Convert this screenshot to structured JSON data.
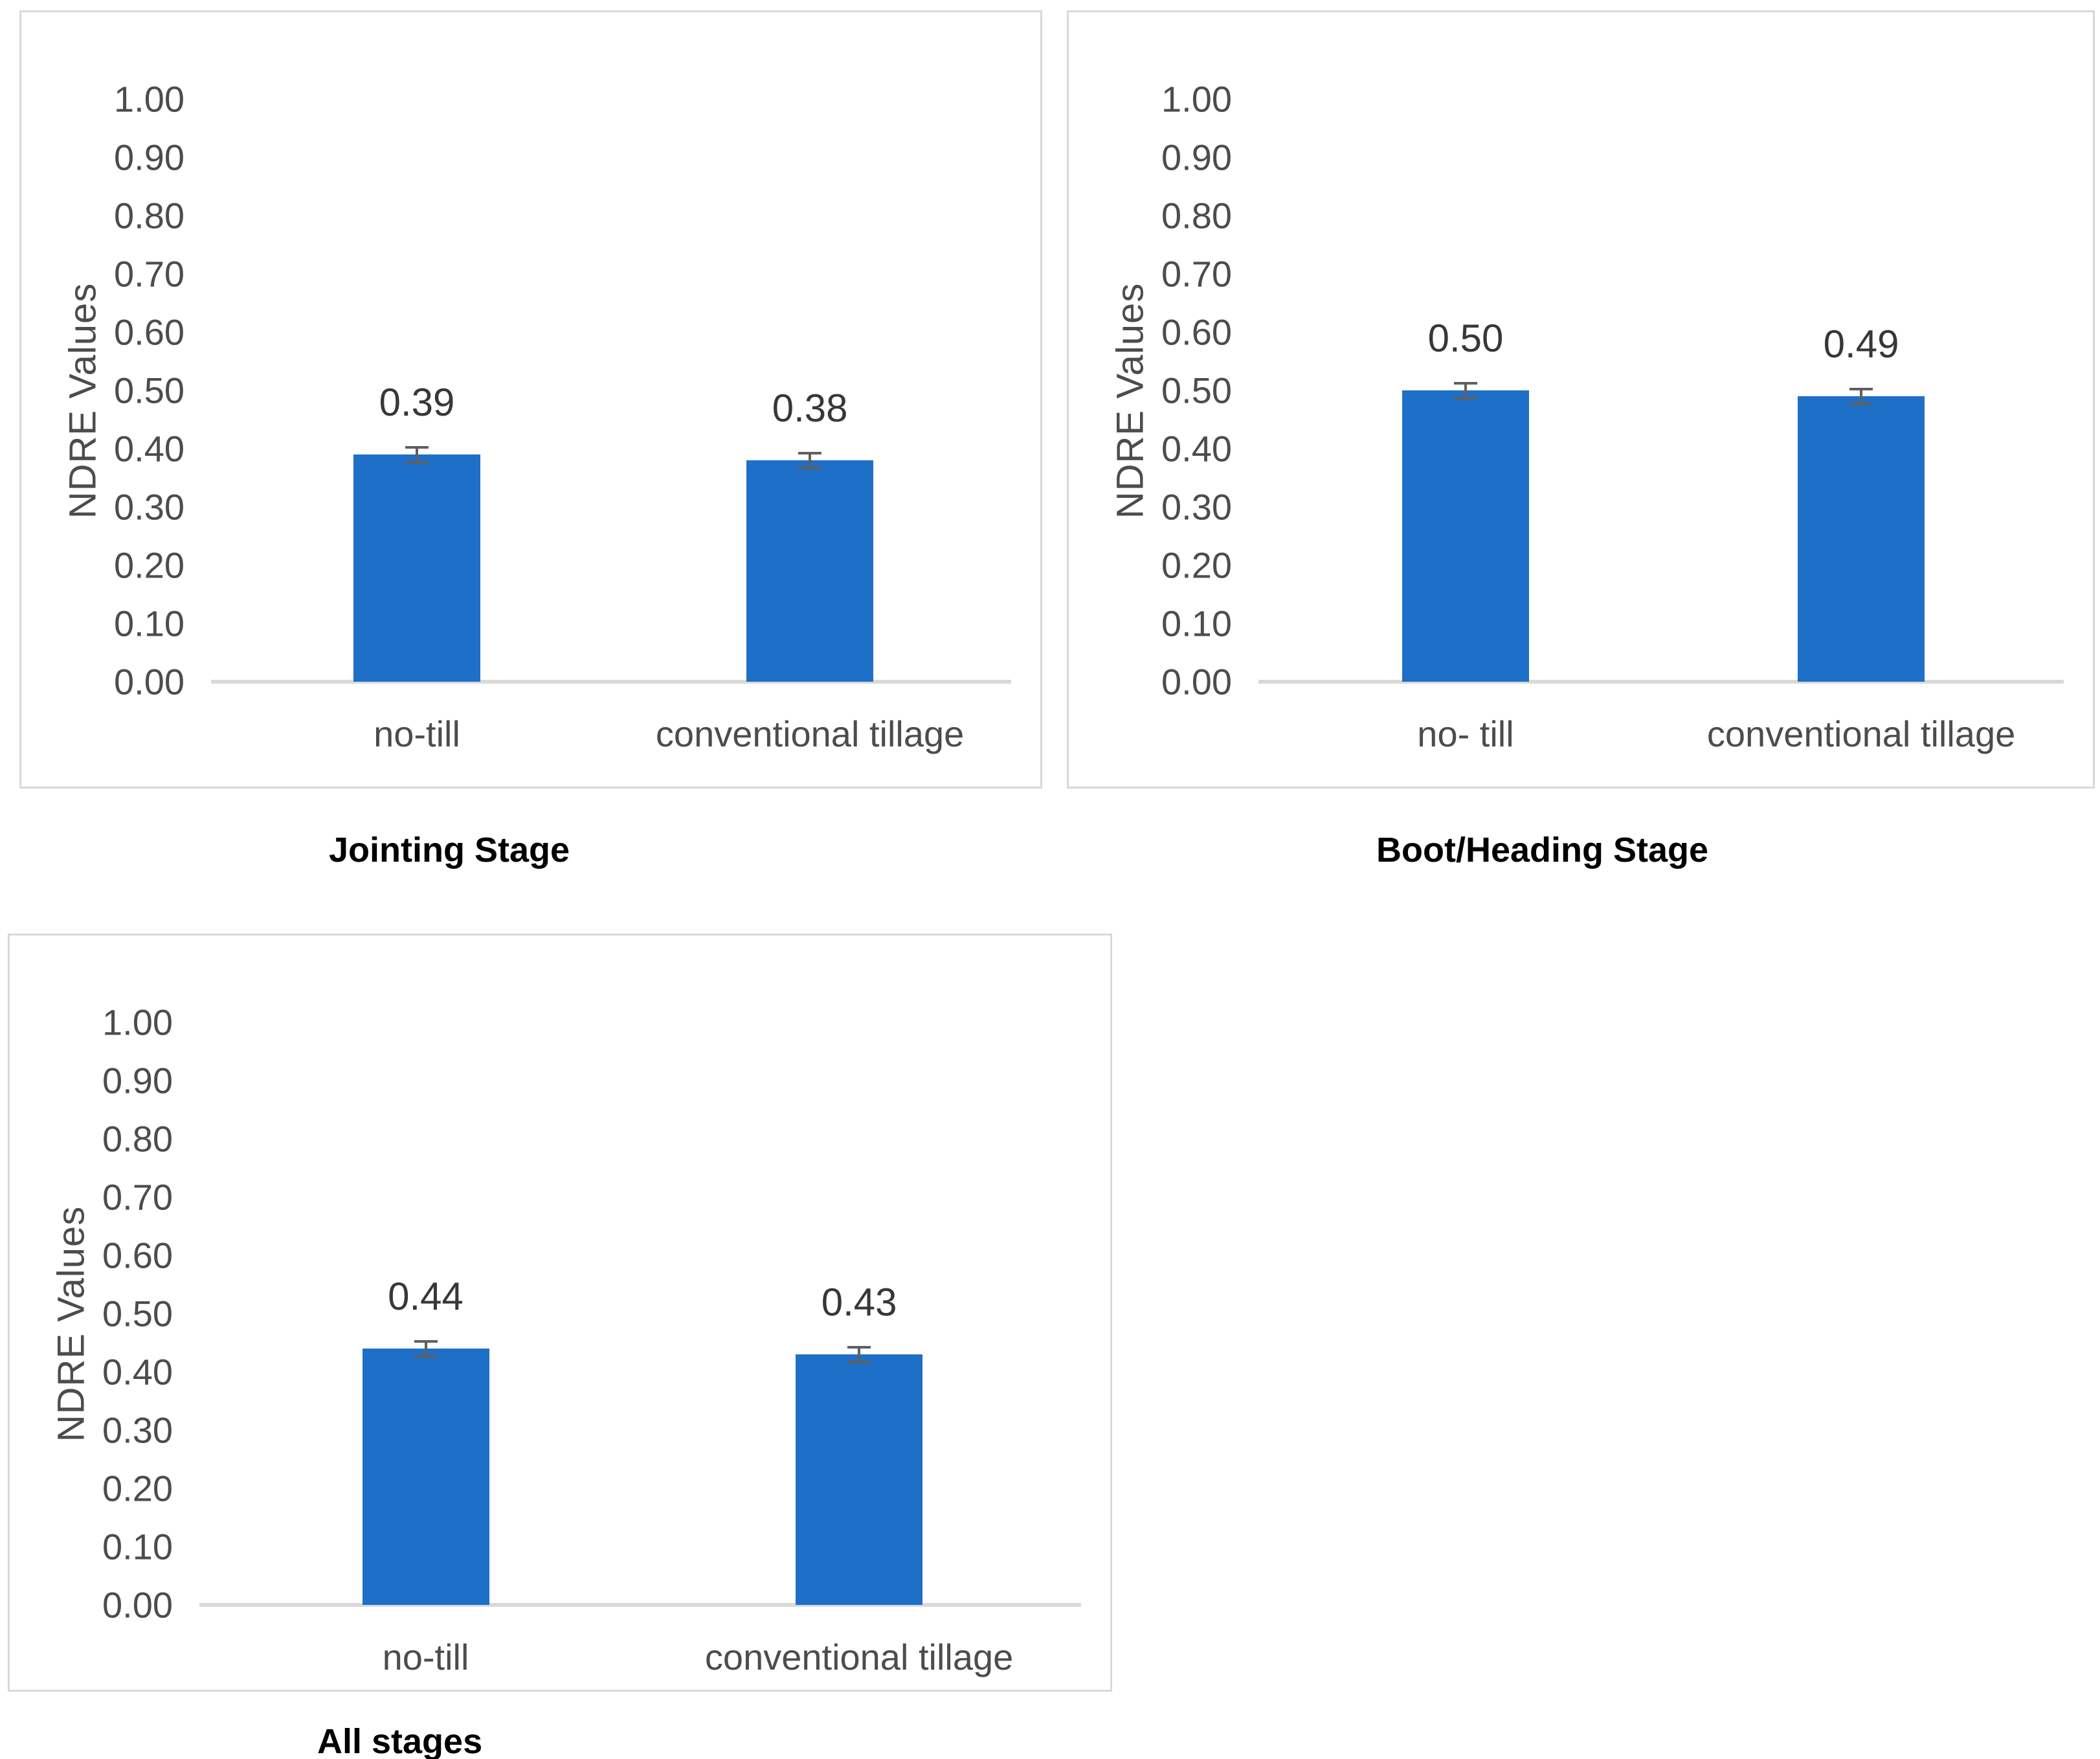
{
  "figure": {
    "background": "#ffffff"
  },
  "colors": {
    "bar": "#1e6fc8",
    "axis_line": "#d9d9d9",
    "panel_border": "#d9d9d9",
    "tick_text": "#4c4c4c",
    "category_text": "#4c4c4c",
    "value_text": "#373737",
    "caption_text": "#000000",
    "error_bar": "#5f5f5f"
  },
  "chart_data": [
    {
      "type": "bar",
      "title": "Jointing Stage",
      "ylabel": "NDRE Values",
      "xlabel": "",
      "ylim": [
        0,
        1
      ],
      "ytick_step": 0.1,
      "yticks": [
        "0.00",
        "0.10",
        "0.20",
        "0.30",
        "0.40",
        "0.50",
        "0.60",
        "0.70",
        "0.80",
        "0.90",
        "1.00"
      ],
      "categories": [
        "no-till",
        "conventional tillage"
      ],
      "values": [
        0.39,
        0.38
      ],
      "value_labels": [
        "0.39",
        "0.38"
      ],
      "error": 0.015,
      "grid": false,
      "legend": null
    },
    {
      "type": "bar",
      "title": "Boot/Heading Stage",
      "ylabel": "NDRE Values",
      "xlabel": "",
      "ylim": [
        0,
        1
      ],
      "ytick_step": 0.1,
      "yticks": [
        "0.00",
        "0.10",
        "0.20",
        "0.30",
        "0.40",
        "0.50",
        "0.60",
        "0.70",
        "0.80",
        "0.90",
        "1.00"
      ],
      "categories": [
        "no- till",
        "conventional tillage"
      ],
      "values": [
        0.5,
        0.49
      ],
      "value_labels": [
        "0.50",
        "0.49"
      ],
      "error": 0.015,
      "grid": false,
      "legend": null
    },
    {
      "type": "bar",
      "title": "All stages",
      "ylabel": "NDRE Values",
      "xlabel": "",
      "ylim": [
        0,
        1
      ],
      "ytick_step": 0.1,
      "yticks": [
        "0.00",
        "0.10",
        "0.20",
        "0.30",
        "0.40",
        "0.50",
        "0.60",
        "0.70",
        "0.80",
        "0.90",
        "1.00"
      ],
      "categories": [
        "no-till",
        "conventional tillage"
      ],
      "values": [
        0.44,
        0.43
      ],
      "value_labels": [
        "0.44",
        "0.43"
      ],
      "error": 0.015,
      "grid": false,
      "legend": null
    }
  ]
}
